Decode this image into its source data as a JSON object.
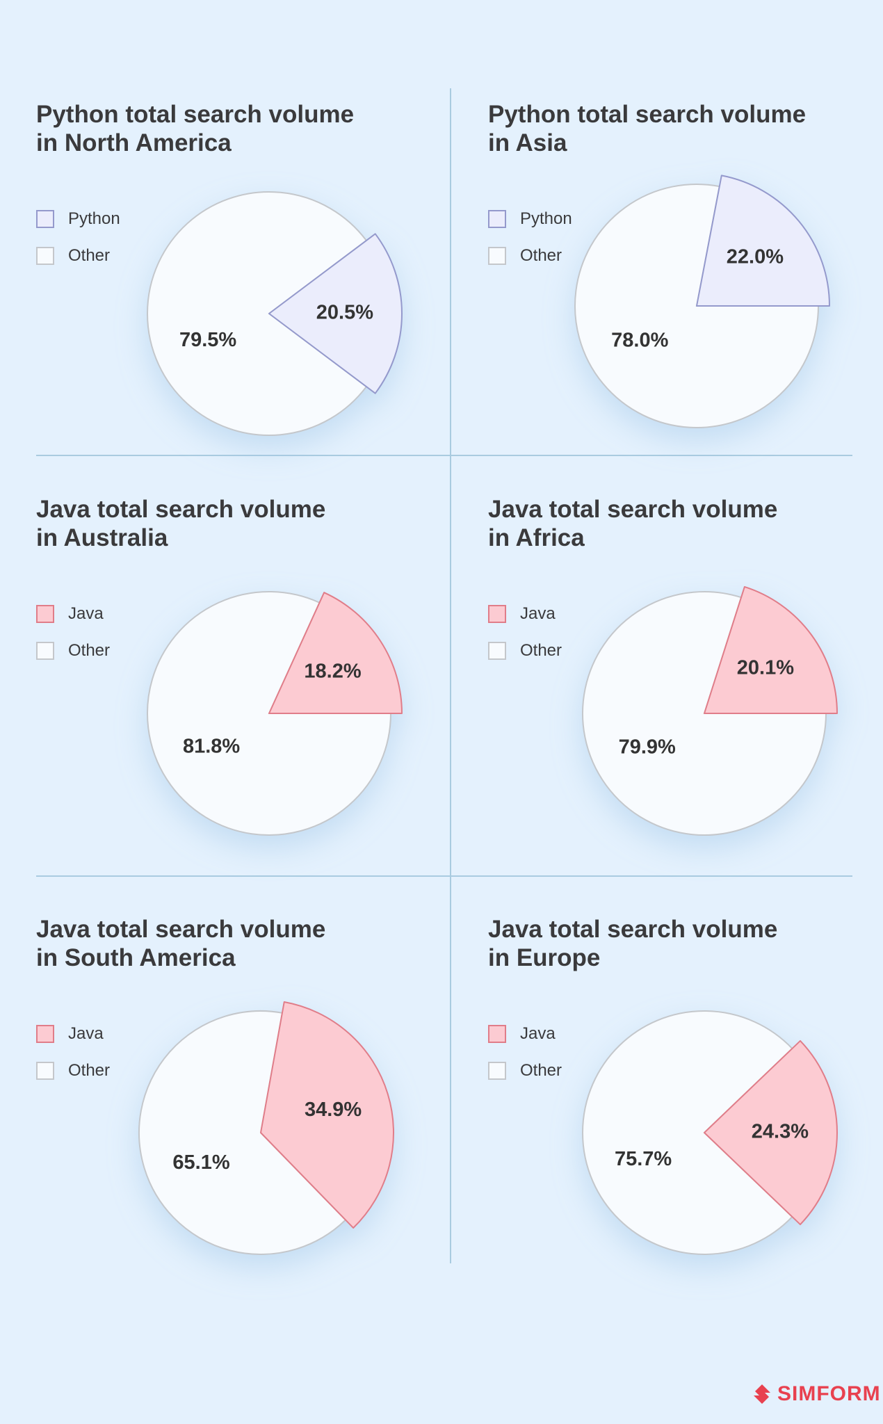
{
  "chart_data": [
    {
      "type": "pie",
      "title": "Python total search volume\nin North America",
      "categories": [
        "Python",
        "Other"
      ],
      "values": [
        20.5,
        79.5
      ],
      "value_labels": [
        "20.5%",
        "79.5%"
      ],
      "colors": [
        "#ebedfc",
        "#f8fbfe"
      ],
      "strokes": [
        "#9499cc",
        "#c4c7cb"
      ]
    },
    {
      "type": "pie",
      "title": "Python total search volume\nin Asia",
      "categories": [
        "Python",
        "Other"
      ],
      "values": [
        22.0,
        78.0
      ],
      "value_labels": [
        "22.0%",
        "78.0%"
      ],
      "colors": [
        "#ebedfc",
        "#f8fbfe"
      ],
      "strokes": [
        "#9499cc",
        "#c4c7cb"
      ]
    },
    {
      "type": "pie",
      "title": "Java total search volume\nin Australia",
      "categories": [
        "Java",
        "Other"
      ],
      "values": [
        18.2,
        81.8
      ],
      "value_labels": [
        "18.2%",
        "81.8%"
      ],
      "colors": [
        "#fccbd2",
        "#f8fbfe"
      ],
      "strokes": [
        "#e07d89",
        "#c4c7cb"
      ]
    },
    {
      "type": "pie",
      "title": "Java total search volume\nin Africa",
      "categories": [
        "Java",
        "Other"
      ],
      "values": [
        20.1,
        79.9
      ],
      "value_labels": [
        "20.1%",
        "79.9%"
      ],
      "colors": [
        "#fccbd2",
        "#f8fbfe"
      ],
      "strokes": [
        "#e07d89",
        "#c4c7cb"
      ]
    },
    {
      "type": "pie",
      "title": "Java total search volume\nin South America",
      "categories": [
        "Java",
        "Other"
      ],
      "values": [
        34.9,
        65.1
      ],
      "value_labels": [
        "34.9%",
        "65.1%"
      ],
      "colors": [
        "#fccbd2",
        "#f8fbfe"
      ],
      "strokes": [
        "#e07d89",
        "#c4c7cb"
      ]
    },
    {
      "type": "pie",
      "title": "Java total search volume\nin Europe",
      "categories": [
        "Java",
        "Other"
      ],
      "values": [
        24.3,
        75.7
      ],
      "value_labels": [
        "24.3%",
        "75.7%"
      ],
      "colors": [
        "#fccbd2",
        "#f8fbfe"
      ],
      "strokes": [
        "#e07d89",
        "#c4c7cb"
      ]
    }
  ],
  "brand": "SIMFORM"
}
